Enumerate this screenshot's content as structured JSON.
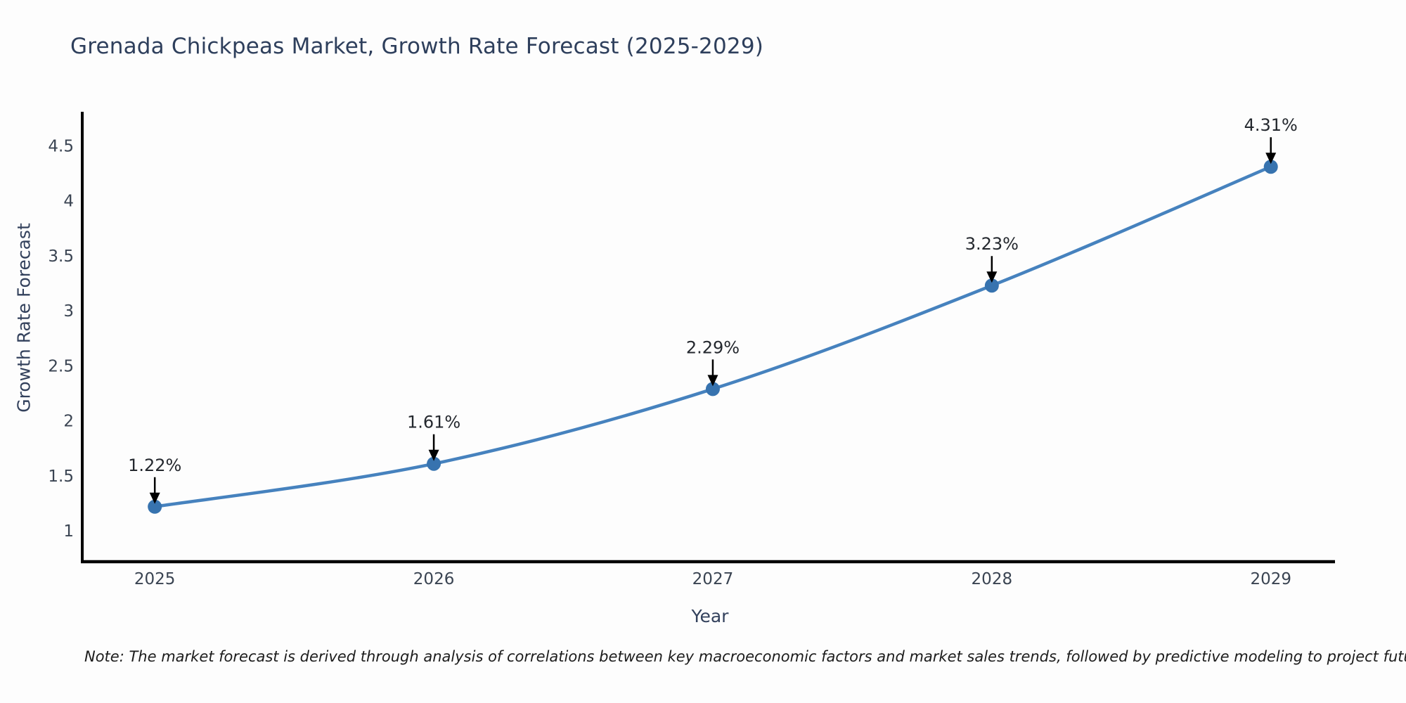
{
  "chart": {
    "title": "Grenada Chickpeas Market, Growth Rate Forecast (2025-2029)",
    "note": "Note: The market forecast is derived through analysis of correlations between key macroeconomic factors and market sales trends, followed by predictive modeling to project future sales"
  },
  "chart_data": {
    "type": "line",
    "title": "Grenada Chickpeas Market, Growth Rate Forecast (2025-2029)",
    "xlabel": "Year",
    "ylabel": "Growth Rate Forecast",
    "x": [
      2025,
      2026,
      2027,
      2028,
      2029
    ],
    "x_tick_labels": [
      "2025",
      "2026",
      "2027",
      "2028",
      "2029"
    ],
    "values": [
      1.22,
      1.61,
      2.29,
      3.23,
      4.31
    ],
    "point_labels": [
      "1.22%",
      "1.61%",
      "2.29%",
      "3.23%",
      "4.31%"
    ],
    "yticks": [
      1,
      1.5,
      2,
      2.5,
      3,
      3.5,
      4,
      4.5
    ],
    "ytick_labels": [
      "1",
      "1.5",
      "2",
      "2.5",
      "3",
      "3.5",
      "4",
      "4.5"
    ],
    "ylim": [
      0.72,
      4.81
    ],
    "xlim": [
      2024.74,
      2029.23
    ],
    "grid": false,
    "legend": null,
    "annotation_style": "value labels above points with downward black arrows",
    "colors": {
      "line": "#4682be",
      "marker": "#3773af",
      "arrow": "#000000",
      "axis": "#000000",
      "tick_text": "#3a4452",
      "annotation_text": "#24282e",
      "title_text": "#2e3f5c",
      "note_text": "#1c1c1c"
    }
  }
}
